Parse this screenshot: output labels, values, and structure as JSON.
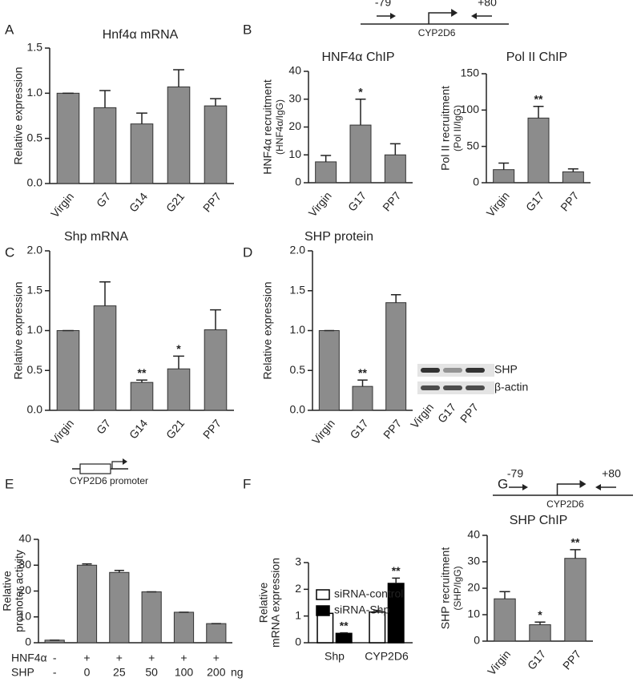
{
  "charts": [
    {
      "type": "bar",
      "panel": "A",
      "title": "Hnf4α mRNA",
      "ylabel": [
        "Relative expression"
      ],
      "categories": [
        "Virgin",
        "G7",
        "G14",
        "G21",
        "PP7"
      ],
      "values": [
        1.0,
        0.84,
        0.66,
        1.07,
        0.86
      ],
      "errors": [
        0,
        0.19,
        0.12,
        0.19,
        0.08
      ],
      "significance": [
        null,
        null,
        null,
        null,
        null
      ],
      "color": "#8c8c8c",
      "ylim": [
        0,
        1.5
      ],
      "yticks": [
        {
          "value": 0,
          "label": "0.0"
        },
        {
          "value": 0.5,
          "label": "0.5"
        },
        {
          "value": 1,
          "label": "1.0"
        },
        {
          "value": 1.5,
          "label": "1.5"
        }
      ]
    },
    {
      "type": "bar",
      "panel": "B",
      "title": "HNF4α ChIP",
      "ylabel": [
        "HNF4α recruitment",
        "(HNF4α/IgG)"
      ],
      "categories": [
        "Virgin",
        "G17",
        "PP7"
      ],
      "values": [
        7.5,
        20.7,
        10
      ],
      "errors": [
        2.3,
        9.3,
        4
      ],
      "significance": [
        null,
        "*",
        null
      ],
      "color": "#8c8c8c",
      "ylim": [
        0,
        40
      ],
      "yticks": [
        0,
        10,
        20,
        30,
        40
      ],
      "promoter": {
        "left": "-79",
        "right": "+80",
        "gene": "CYP2D6"
      }
    },
    {
      "type": "bar",
      "title": "Pol II ChIP",
      "ylabel": [
        "Pol II recruitment",
        "(Pol II/IgG)"
      ],
      "categories": [
        "Virgin",
        "G17",
        "PP7"
      ],
      "values": [
        18,
        89,
        15
      ],
      "errors": [
        9,
        16,
        4
      ],
      "significance": [
        null,
        "**",
        null
      ],
      "color": "#8c8c8c",
      "ylim": [
        0,
        150
      ],
      "yticks": [
        0,
        50,
        100,
        150
      ]
    },
    {
      "type": "bar",
      "panel": "C",
      "title": "Shp mRNA",
      "ylabel": [
        "Relative expression"
      ],
      "categories": [
        "Virgin",
        "G7",
        "G14",
        "G21",
        "PP7"
      ],
      "values": [
        1.0,
        1.31,
        0.35,
        0.52,
        1.01
      ],
      "errors": [
        0,
        0.3,
        0.03,
        0.16,
        0.25
      ],
      "significance": [
        null,
        null,
        "**",
        "*",
        null
      ],
      "color": "#8c8c8c",
      "ylim": [
        0,
        2
      ],
      "yticks": [
        {
          "value": 0,
          "label": "0.0"
        },
        {
          "value": 0.5,
          "label": "0.5"
        },
        {
          "value": 1,
          "label": "1.0"
        },
        {
          "value": 1.5,
          "label": "1.5"
        },
        {
          "value": 2,
          "label": "2.0"
        }
      ]
    },
    {
      "type": "bar",
      "panel": "D",
      "title": "SHP protein",
      "ylabel": [
        "Relative expression"
      ],
      "categories": [
        "Virgin",
        "G17",
        "PP7"
      ],
      "values": [
        1.0,
        0.3,
        1.35
      ],
      "errors": [
        0,
        0.08,
        0.1
      ],
      "significance": [
        null,
        "**",
        null
      ],
      "color": "#8c8c8c",
      "ylim": [
        0,
        2
      ],
      "yticks": [
        {
          "value": 0,
          "label": "0.0"
        },
        {
          "value": 0.5,
          "label": "0.5"
        },
        {
          "value": 1,
          "label": "1.0"
        },
        {
          "value": 1.5,
          "label": "1.5"
        },
        {
          "value": 2,
          "label": "2.0"
        }
      ],
      "blot": {
        "bands": [
          "SHP",
          "β-actin"
        ],
        "lanes": [
          "Virgin",
          "G17",
          "PP7"
        ]
      }
    },
    {
      "type": "bar",
      "panel": "E",
      "ylabel": [
        "Relative",
        "promoter activity"
      ],
      "values": [
        1,
        30,
        27.2,
        19.7,
        11.8,
        7.4
      ],
      "errors": [
        0,
        0.5,
        0.8,
        0,
        0,
        0
      ],
      "significance": [
        null,
        null,
        null,
        null,
        null,
        null
      ],
      "color": "#8c8c8c",
      "ylim": [
        0,
        40
      ],
      "yticks": [
        0,
        10,
        20,
        30,
        40
      ],
      "construct": "CYP2D6 promoter",
      "rows": [
        {
          "label": "HNF4α",
          "values": [
            "-",
            "+",
            "+",
            "+",
            "+",
            "+"
          ]
        },
        {
          "label": "SHP",
          "values": [
            "-",
            "0",
            "25",
            "50",
            "100",
            "200"
          ],
          "unit": "ng"
        }
      ]
    },
    {
      "type": "grouped_bar",
      "panel": "F",
      "ylabel": [
        "Relative",
        "mRNA expression"
      ],
      "categories": [
        "Shp",
        "CYP2D6"
      ],
      "series": [
        {
          "name": "siRNA-control",
          "color": "#ffffff",
          "values": [
            1.1,
            1.15
          ],
          "errors": [
            0.08,
            0.06
          ],
          "significance": [
            null,
            null
          ]
        },
        {
          "name": "siRNA-Shp",
          "color": "#000000",
          "values": [
            0.35,
            2.22
          ],
          "errors": [
            0.02,
            0.2
          ],
          "significance": [
            "**",
            "**"
          ]
        }
      ],
      "ylim": [
        0,
        3
      ],
      "yticks": [
        0,
        1,
        2,
        3
      ]
    },
    {
      "type": "bar",
      "panel": "G",
      "title": "SHP ChIP",
      "ylabel": [
        "SHP recruitment",
        "(SHP/IgG)"
      ],
      "categories": [
        "Virgin",
        "G17",
        "PP7"
      ],
      "values": [
        16,
        6.2,
        31.3
      ],
      "errors": [
        2.7,
        1,
        3.3
      ],
      "significance": [
        null,
        "*",
        "**"
      ],
      "color": "#8c8c8c",
      "ylim": [
        0,
        40
      ],
      "yticks": [
        0,
        10,
        20,
        30,
        40
      ],
      "promoter": {
        "left": "-79",
        "right": "+80",
        "gene": "CYP2D6"
      }
    }
  ]
}
